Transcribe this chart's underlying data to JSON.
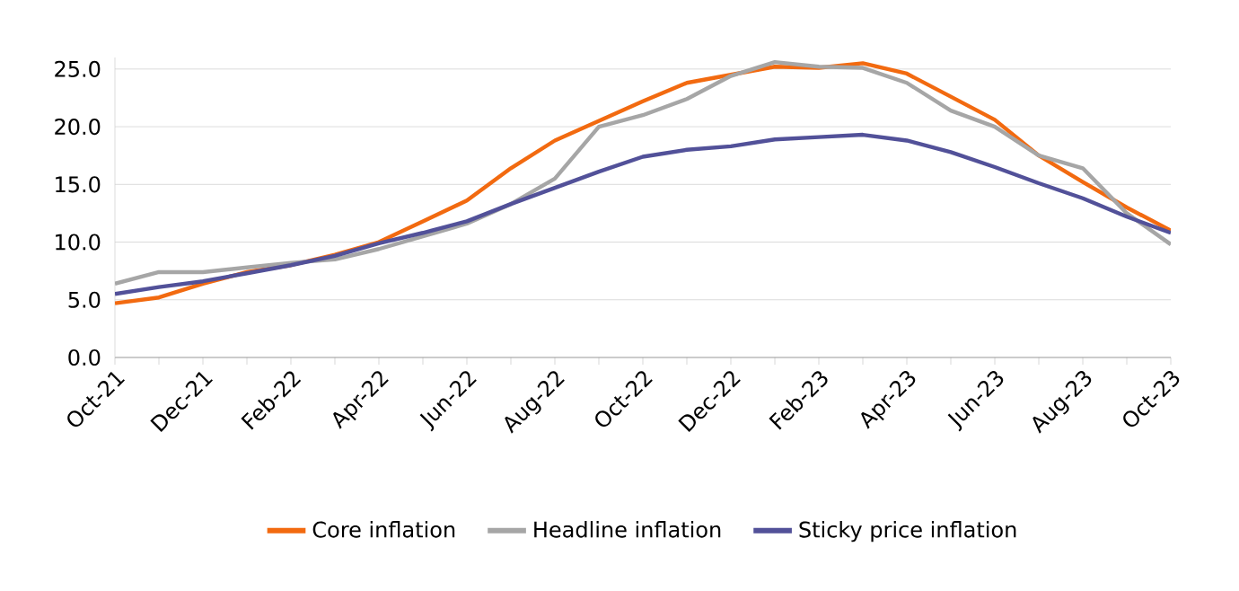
{
  "chart_data": {
    "type": "line",
    "categories": [
      "Oct-21",
      null,
      "Dec-21",
      null,
      "Feb-22",
      null,
      "Apr-22",
      null,
      "Jun-22",
      null,
      "Aug-22",
      null,
      "Oct-22",
      null,
      "Dec-22",
      null,
      "Feb-23",
      null,
      "Apr-23",
      null,
      "Jun-23",
      null,
      "Aug-23",
      null,
      "Oct-23"
    ],
    "series": [
      {
        "name": "Core inflation",
        "color": "#f26a10",
        "values": [
          4.7,
          5.2,
          6.4,
          7.4,
          8.0,
          8.9,
          10.0,
          11.8,
          13.6,
          16.4,
          18.8,
          20.5,
          22.2,
          23.8,
          24.5,
          25.2,
          25.1,
          25.5,
          24.6,
          22.6,
          20.6,
          17.5,
          15.2,
          13.0,
          11.0
        ]
      },
      {
        "name": "Headline inflation",
        "color": "#a6a6a6",
        "values": [
          6.4,
          7.4,
          7.4,
          7.8,
          8.2,
          8.5,
          9.4,
          10.5,
          11.6,
          13.3,
          15.5,
          20.0,
          21.0,
          22.4,
          24.4,
          25.6,
          25.2,
          25.1,
          23.8,
          21.4,
          20.0,
          17.5,
          16.4,
          12.5,
          9.8
        ]
      },
      {
        "name": "Sticky price inflation",
        "color": "#525199",
        "values": [
          5.5,
          6.1,
          6.6,
          7.3,
          8.0,
          8.8,
          9.9,
          10.8,
          11.8,
          13.3,
          14.7,
          16.1,
          17.4,
          18.0,
          18.3,
          18.9,
          19.1,
          19.3,
          18.8,
          17.8,
          16.5,
          15.1,
          13.8,
          12.2,
          10.8
        ]
      }
    ],
    "ylim": [
      0,
      26
    ],
    "yticks": [
      {
        "value": 0,
        "label": "0.0"
      },
      {
        "value": 5,
        "label": "5.0"
      },
      {
        "value": 10,
        "label": "10.0"
      },
      {
        "value": 15,
        "label": "15.0"
      },
      {
        "value": 20,
        "label": "20.0"
      },
      {
        "value": 25,
        "label": "25.0"
      }
    ],
    "grid": "y",
    "legend": "bottom",
    "marker": "none",
    "line_style": "solid"
  }
}
